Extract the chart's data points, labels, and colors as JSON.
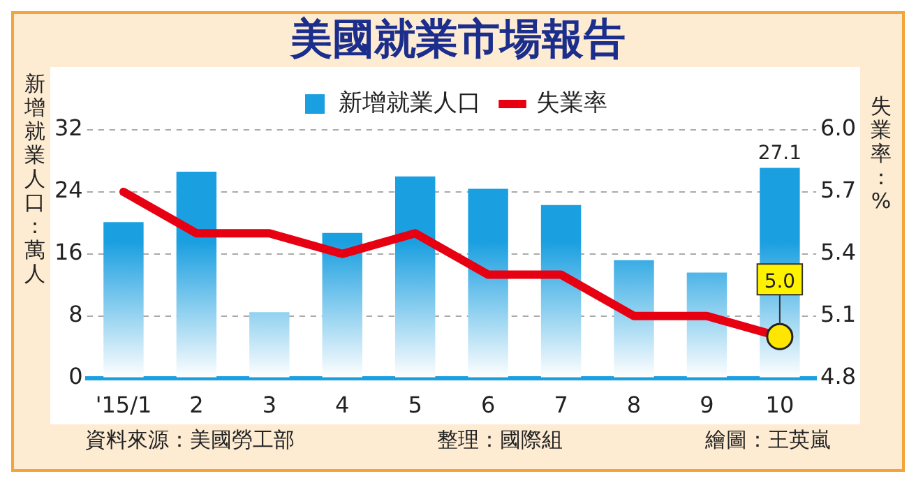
{
  "chart_data": {
    "type": "bar",
    "title": "美國就業市場報告",
    "ylabel": "新增就業人口：萬人",
    "y2label": "失業率：%",
    "categories": [
      "'15/1",
      "2",
      "3",
      "4",
      "5",
      "6",
      "7",
      "8",
      "9",
      "10"
    ],
    "series": [
      {
        "name": "新增就業人口",
        "color": "#1a9fe0",
        "values": [
          20.1,
          26.6,
          8.5,
          18.7,
          26.0,
          24.4,
          22.3,
          15.2,
          13.6,
          27.1
        ],
        "value_labels": [
          null,
          null,
          null,
          null,
          null,
          null,
          null,
          null,
          null,
          "27.1"
        ]
      },
      {
        "name": "失業率",
        "type": "line",
        "axis": "y2",
        "color": "#e60012",
        "values": [
          5.7,
          5.5,
          5.5,
          5.4,
          5.5,
          5.3,
          5.3,
          5.1,
          5.1,
          5.0
        ],
        "value_labels": [
          null,
          null,
          null,
          null,
          null,
          null,
          null,
          null,
          null,
          "5.0"
        ]
      }
    ],
    "ylim": [
      0,
      32
    ],
    "yticks": [
      0,
      8,
      16,
      24,
      32
    ],
    "y2lim": [
      4.8,
      6.0
    ],
    "y2ticks": [
      {
        "value": 4.8,
        "label": "4.8"
      },
      {
        "value": 5.1,
        "label": "5.1"
      },
      {
        "value": 5.4,
        "label": "5.4"
      },
      {
        "value": 5.7,
        "label": "5.7"
      },
      {
        "value": 6.0,
        "label": "6.0"
      }
    ],
    "grid": "y",
    "legend": "top",
    "annotations": [
      "資料來源：美國勞工部",
      "整理：國際組",
      "繪圖：王英嵐"
    ]
  }
}
